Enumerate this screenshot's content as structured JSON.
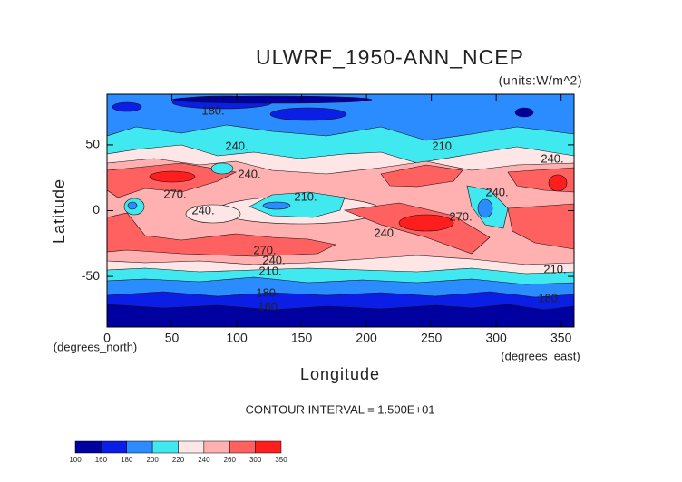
{
  "chart_data": {
    "type": "contour",
    "title": "ULWRF_1950-ANN_NCEP",
    "units": "(units:W/m^2)",
    "xlabel": "Longitude",
    "ylabel": "Latitude",
    "x_unit": "(degrees_east)",
    "y_unit": "(degrees_north)",
    "footnote": "CONTOUR INTERVAL = 1.500E+01",
    "xlim": [
      0,
      360
    ],
    "ylim": [
      -88.5,
      88.5
    ],
    "xticks": [
      0,
      50,
      100,
      150,
      200,
      250,
      300,
      350
    ],
    "yticks": [
      50,
      0,
      -50
    ],
    "contour_labels": [
      {
        "value": 180,
        "label": "180."
      },
      {
        "value": 240,
        "label": "240."
      },
      {
        "value": 210,
        "label": "210."
      },
      {
        "value": 240,
        "label": "240."
      },
      {
        "value": 240,
        "label": "240."
      },
      {
        "value": 270,
        "label": "270."
      },
      {
        "value": 210,
        "label": "210."
      },
      {
        "value": 240,
        "label": "240."
      },
      {
        "value": 240,
        "label": "240."
      },
      {
        "value": 270,
        "label": "270."
      },
      {
        "value": 240,
        "label": "240."
      },
      {
        "value": 270,
        "label": "270."
      },
      {
        "value": 240,
        "label": "240."
      },
      {
        "value": 210,
        "label": "210."
      },
      {
        "value": 210,
        "label": "210."
      },
      {
        "value": 180,
        "label": "180."
      },
      {
        "value": 160,
        "label": "160."
      },
      {
        "value": 180,
        "label": "180."
      }
    ],
    "colorbar": {
      "levels": [
        100,
        160,
        180,
        200,
        220,
        240,
        260,
        300,
        350
      ],
      "colors": [
        "#0000a0",
        "#0a1ee6",
        "#2a8cff",
        "#40e8f0",
        "#ffe6e6",
        "#ffb0b0",
        "#ff6060",
        "#ff1e1e"
      ]
    }
  }
}
